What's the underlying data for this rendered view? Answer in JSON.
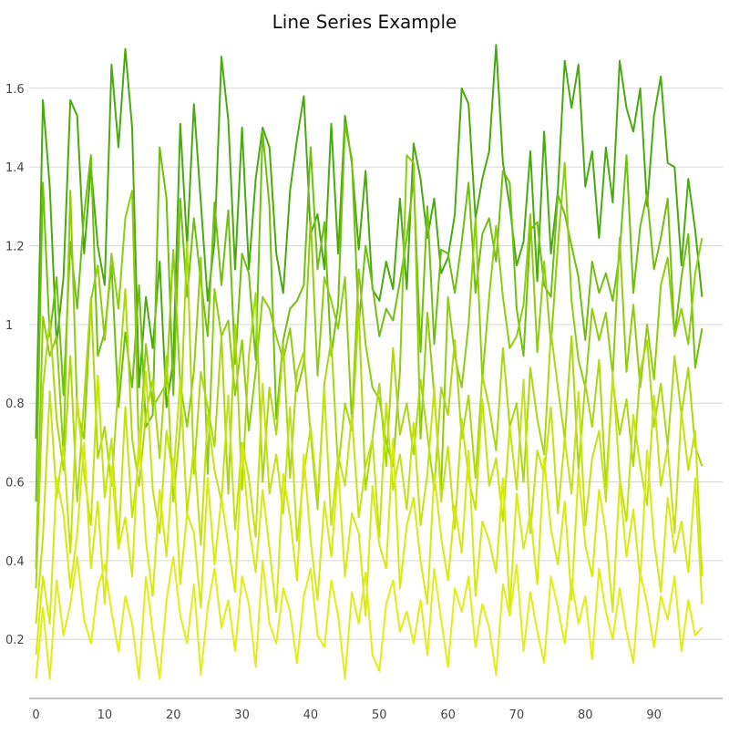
{
  "chart_data": {
    "type": "line",
    "title": "Line Series Example",
    "xlabel": "",
    "ylabel": "",
    "xlim": [
      -1,
      100
    ],
    "ylim": [
      0.05,
      1.72
    ],
    "xticks": [
      0,
      10,
      20,
      30,
      40,
      50,
      60,
      70,
      80,
      90
    ],
    "yticks": [
      0.2,
      0.4,
      0.6,
      0.8,
      1.0,
      1.2,
      1.4,
      1.6
    ],
    "ytick_labels": [
      "0.2",
      "0.4",
      "0.6",
      "0.8",
      "1",
      "1.2",
      "1.4",
      "1.6"
    ],
    "grid": "horizontal",
    "legend": "none",
    "colors": [
      "#4aa90f",
      "#6fbf10",
      "#8fcc10",
      "#abd710",
      "#c4e20f",
      "#d6ea0e",
      "#e0ee14"
    ],
    "series": [
      {
        "values": [
          0.71,
          1.57,
          1.35,
          0.95,
          1.12,
          1.57,
          1.53,
          1.18,
          1.4,
          1.2,
          1.1,
          1.66,
          1.45,
          1.7,
          1.5,
          0.84,
          1.07,
          0.94,
          1.16,
          0.79,
          0.91,
          1.51,
          1.2,
          1.56,
          1.31,
          1.06,
          1.21,
          1.68,
          1.52,
          1.14,
          1.5,
          1.14,
          1.37,
          1.5,
          1.45,
          1.18,
          1.08,
          1.34,
          1.47,
          1.58,
          1.23,
          1.28,
          1.14,
          1.51,
          1.18,
          1.53,
          1.41,
          1.19,
          1.39,
          1.09,
          1.06,
          1.16,
          1.09,
          1.32,
          1.09,
          1.46,
          1.37,
          1.22,
          1.32,
          1.13,
          1.17,
          1.28,
          1.6,
          1.56,
          1.27,
          1.37,
          1.44,
          1.71,
          1.41,
          1.3,
          1.15,
          1.21,
          1.44,
          1.11,
          1.49,
          1.18,
          1.34,
          1.67,
          1.55,
          1.66,
          1.35,
          1.44,
          1.22,
          1.45,
          1.31,
          1.67,
          1.55,
          1.49,
          1.6,
          1.3,
          1.53,
          1.63,
          1.41,
          1.4,
          1.15,
          1.37,
          1.24,
          1.07
        ]
      },
      {
        "values": [
          0.55,
          1.36,
          0.97,
          1.12,
          0.82,
          1.21,
          1.04,
          1.28,
          1.43,
          0.92,
          0.98,
          1.15,
          0.79,
          0.98,
          0.84,
          1.1,
          0.74,
          0.77,
          1.45,
          1.32,
          0.82,
          1.32,
          1.07,
          1.27,
          1.11,
          0.97,
          1.31,
          1.1,
          1.29,
          0.9,
          1.18,
          1.13,
          0.91,
          1.49,
          1.3,
          0.76,
          0.96,
          1.04,
          1.06,
          1.1,
          1.45,
          1.14,
          1.26,
          0.92,
          1.05,
          1.51,
          1.42,
          1.0,
          1.2,
          1.1,
          0.97,
          1.04,
          1.01,
          1.11,
          1.22,
          1.37,
          0.93,
          1.3,
          0.95,
          1.19,
          1.18,
          1.08,
          1.21,
          1.36,
          1.08,
          1.23,
          1.27,
          1.16,
          1.39,
          1.36,
          1.04,
          0.92,
          1.24,
          1.26,
          1.1,
          1.07,
          1.33,
          1.28,
          1.2,
          1.12,
          0.96,
          1.16,
          1.08,
          1.13,
          1.06,
          1.18,
          1.43,
          1.08,
          1.25,
          1.33,
          1.14,
          1.22,
          1.32,
          0.97,
          1.12,
          1.23,
          0.89,
          0.99
        ]
      },
      {
        "values": [
          0.38,
          1.02,
          0.92,
          0.97,
          0.67,
          1.34,
          0.78,
          0.71,
          1.06,
          1.15,
          0.96,
          1.18,
          1.04,
          1.27,
          1.34,
          0.66,
          0.95,
          0.79,
          0.82,
          0.85,
          1.19,
          0.85,
          0.74,
          0.88,
          1.17,
          0.62,
          1.09,
          0.97,
          1.01,
          0.82,
          0.96,
          0.73,
          0.88,
          1.07,
          1.04,
          0.97,
          0.91,
          0.99,
          0.83,
          0.9,
          1.27,
          0.87,
          1.12,
          1.06,
          0.99,
          1.12,
          0.75,
          1.14,
          0.95,
          0.84,
          0.81,
          0.7,
          0.64,
          0.88,
          1.43,
          1.41,
          0.71,
          1.03,
          0.82,
          0.58,
          1.07,
          0.92,
          0.84,
          1.0,
          1.27,
          0.86,
          1.07,
          1.25,
          1.07,
          0.94,
          0.97,
          1.05,
          1.28,
          0.93,
          1.16,
          0.95,
          1.2,
          1.41,
          1.06,
          0.91,
          0.84,
          1.04,
          0.96,
          1.03,
          0.87,
          1.22,
          0.88,
          1.05,
          0.84,
          1.0,
          0.86,
          1.1,
          1.17,
          0.97,
          1.04,
          0.95,
          1.13,
          1.22
        ]
      },
      {
        "values": [
          0.33,
          0.84,
          1.01,
          0.76,
          0.63,
          0.92,
          0.55,
          0.81,
          1.07,
          0.66,
          0.74,
          0.59,
          0.85,
          1.09,
          0.71,
          0.59,
          0.77,
          0.86,
          0.66,
          0.92,
          0.55,
          0.74,
          1.21,
          0.62,
          0.88,
          0.79,
          0.69,
          0.97,
          0.57,
          1.0,
          0.58,
          0.92,
          1.08,
          0.6,
          0.84,
          0.72,
          0.95,
          0.61,
          0.88,
          0.93,
          0.72,
          0.53,
          0.85,
          0.96,
          0.63,
          0.8,
          0.73,
          1.04,
          0.58,
          0.71,
          0.85,
          0.64,
          0.94,
          0.72,
          0.8,
          0.67,
          0.86,
          0.72,
          0.58,
          0.84,
          0.77,
          0.96,
          0.71,
          0.82,
          0.61,
          0.87,
          0.79,
          0.68,
          0.94,
          0.74,
          0.8,
          0.6,
          0.89,
          0.76,
          0.67,
          0.98,
          0.84,
          0.71,
          0.97,
          0.63,
          0.85,
          0.74,
          0.91,
          0.59,
          0.86,
          0.72,
          0.81,
          0.64,
          0.88,
          0.96,
          0.74,
          0.85,
          0.69,
          0.92,
          0.77,
          0.89,
          0.69,
          0.64
        ]
      },
      {
        "values": [
          0.24,
          0.46,
          0.83,
          0.56,
          0.69,
          0.42,
          0.81,
          0.62,
          0.49,
          0.87,
          0.56,
          0.71,
          0.44,
          0.79,
          0.51,
          0.66,
          0.88,
          0.58,
          0.47,
          0.73,
          0.61,
          0.86,
          0.52,
          0.69,
          0.44,
          0.77,
          0.63,
          0.55,
          0.82,
          0.48,
          0.7,
          0.61,
          0.46,
          0.85,
          0.57,
          0.67,
          0.52,
          0.79,
          0.45,
          0.62,
          0.74,
          0.56,
          0.83,
          0.49,
          0.67,
          0.59,
          0.77,
          0.51,
          0.64,
          0.71,
          0.46,
          0.8,
          0.58,
          0.67,
          0.53,
          0.75,
          0.49,
          0.62,
          0.84,
          0.55,
          0.69,
          0.48,
          0.76,
          0.61,
          0.53,
          0.81,
          0.59,
          0.66,
          0.5,
          0.74,
          0.58,
          0.86,
          0.47,
          0.68,
          0.62,
          0.79,
          0.52,
          0.71,
          0.57,
          0.83,
          0.49,
          0.66,
          0.73,
          0.55,
          0.88,
          0.61,
          0.5,
          0.77,
          0.64,
          0.54,
          0.82,
          0.59,
          0.69,
          0.47,
          0.78,
          0.63,
          0.73,
          0.36
        ]
      },
      {
        "values": [
          0.16,
          0.36,
          0.24,
          0.61,
          0.52,
          0.33,
          0.47,
          0.7,
          0.38,
          0.55,
          0.29,
          0.64,
          0.43,
          0.51,
          0.36,
          0.73,
          0.45,
          0.31,
          0.58,
          0.41,
          0.66,
          0.34,
          0.52,
          0.47,
          0.28,
          0.61,
          0.39,
          0.56,
          0.44,
          0.32,
          0.69,
          0.49,
          0.37,
          0.58,
          0.43,
          0.27,
          0.62,
          0.51,
          0.35,
          0.67,
          0.45,
          0.3,
          0.55,
          0.41,
          0.63,
          0.36,
          0.52,
          0.47,
          0.26,
          0.59,
          0.44,
          0.38,
          0.71,
          0.33,
          0.49,
          0.56,
          0.4,
          0.29,
          0.62,
          0.46,
          0.35,
          0.54,
          0.42,
          0.68,
          0.31,
          0.5,
          0.45,
          0.37,
          0.61,
          0.28,
          0.57,
          0.43,
          0.52,
          0.34,
          0.66,
          0.48,
          0.39,
          0.55,
          0.3,
          0.63,
          0.44,
          0.36,
          0.58,
          0.47,
          0.27,
          0.6,
          0.41,
          0.53,
          0.35,
          0.68,
          0.45,
          0.32,
          0.56,
          0.42,
          0.5,
          0.37,
          0.61,
          0.29
        ]
      },
      {
        "values": [
          0.1,
          0.28,
          0.1,
          0.35,
          0.21,
          0.29,
          0.41,
          0.25,
          0.19,
          0.33,
          0.39,
          0.27,
          0.17,
          0.31,
          0.24,
          0.1,
          0.36,
          0.22,
          0.1,
          0.3,
          0.41,
          0.26,
          0.19,
          0.34,
          0.11,
          0.28,
          0.38,
          0.23,
          0.3,
          0.17,
          0.36,
          0.29,
          0.13,
          0.4,
          0.24,
          0.19,
          0.33,
          0.27,
          0.14,
          0.31,
          0.38,
          0.21,
          0.18,
          0.35,
          0.26,
          0.1,
          0.32,
          0.24,
          0.37,
          0.16,
          0.12,
          0.29,
          0.35,
          0.22,
          0.27,
          0.19,
          0.3,
          0.16,
          0.38,
          0.25,
          0.13,
          0.33,
          0.27,
          0.36,
          0.18,
          0.29,
          0.23,
          0.11,
          0.34,
          0.26,
          0.39,
          0.17,
          0.32,
          0.22,
          0.14,
          0.36,
          0.28,
          0.19,
          0.35,
          0.24,
          0.31,
          0.15,
          0.38,
          0.27,
          0.2,
          0.33,
          0.22,
          0.14,
          0.37,
          0.29,
          0.18,
          0.31,
          0.25,
          0.36,
          0.17,
          0.3,
          0.21,
          0.23
        ]
      }
    ]
  }
}
